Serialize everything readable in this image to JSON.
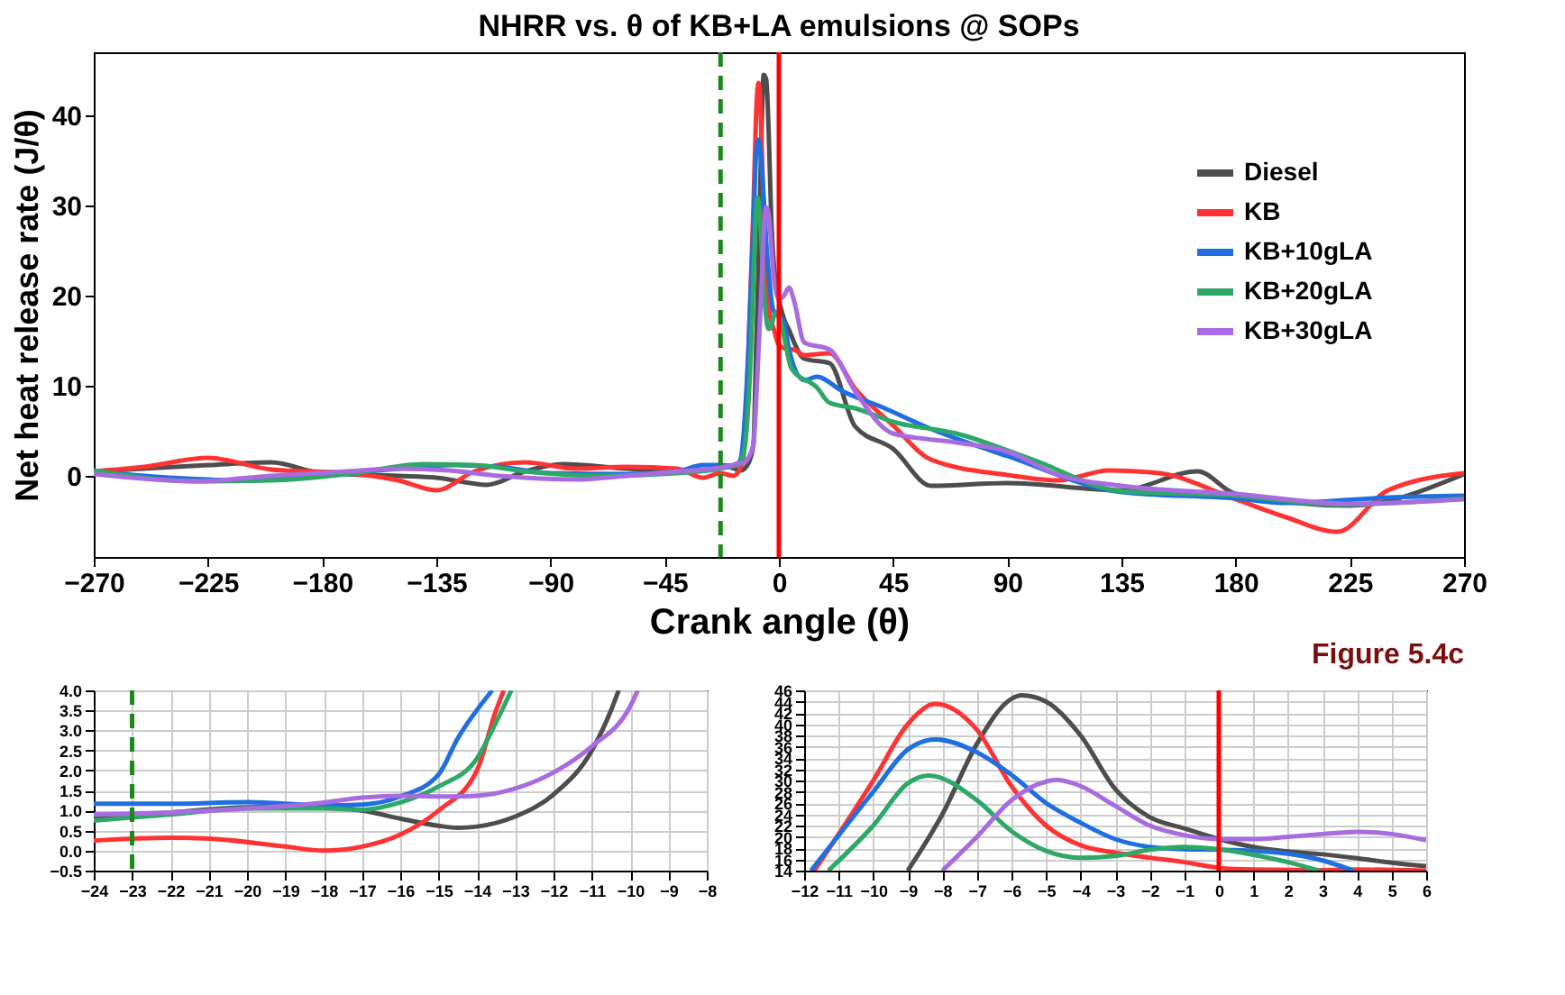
{
  "chart_data": [
    {
      "type": "line",
      "title": "NHRR vs. θ of KB+LA emulsions @ SOPs",
      "xlabel": "Crank angle (θ)",
      "ylabel": "Net heat release rate (J/θ)",
      "xlim": [
        -270,
        270
      ],
      "xticks": [
        -270,
        -225,
        -180,
        -135,
        -90,
        -45,
        0,
        45,
        90,
        135,
        180,
        225,
        270
      ],
      "ylim": [
        -9,
        47
      ],
      "yticks": [
        0,
        10,
        20,
        30,
        40
      ],
      "grid": false,
      "legend": "right",
      "line_style": "solid",
      "marker": "none",
      "annotations": [
        "Figure 5.4c"
      ],
      "ref_lines": [
        {
          "axis": "x",
          "value": -23,
          "color": "#1a8a1a",
          "line_style": "dashed"
        },
        {
          "axis": "x",
          "value": 0,
          "color": "#ff0000",
          "line_style": "solid"
        }
      ],
      "series": [
        {
          "name": "Diesel",
          "color": "#4d4d4d",
          "x": [
            -270,
            -225,
            -200,
            -180,
            -150,
            -135,
            -115,
            -100,
            -85,
            -60,
            -45,
            -30,
            -20,
            -15,
            -12,
            -10,
            -9,
            -8,
            -7,
            -6,
            -5,
            -4,
            -3,
            -2,
            0,
            2,
            4,
            6,
            10,
            20,
            30,
            45,
            60,
            90,
            135,
            165,
            180,
            225,
            270
          ],
          "values": [
            0.5,
            1.2,
            1.5,
            0.3,
            0,
            -0.2,
            -1.0,
            0.5,
            1.3,
            0.8,
            0.6,
            0.6,
            1.0,
            0.6,
            1.4,
            3.6,
            14,
            24,
            36.5,
            44.5,
            44,
            38,
            28.5,
            23.5,
            19.6,
            17.4,
            16.2,
            14.8,
            13,
            12.5,
            5.5,
            3,
            -1.1,
            -0.8,
            -1.6,
            0.5,
            -2,
            -3.3,
            0.2
          ]
        },
        {
          "name": "KB",
          "color": "#ff3333",
          "x": [
            -270,
            -250,
            -225,
            -200,
            -170,
            -150,
            -135,
            -120,
            -100,
            -80,
            -60,
            -40,
            -30,
            -23,
            -18,
            -15,
            -14,
            -12,
            -10,
            -9,
            -8,
            -7,
            -6,
            -5,
            -4,
            -2,
            0,
            3,
            6,
            10,
            20,
            30,
            45,
            60,
            90,
            110,
            130,
            150,
            180,
            200,
            220,
            240,
            270
          ],
          "values": [
            0.5,
            1,
            2,
            0.7,
            0.3,
            -0.5,
            -1.6,
            0.5,
            1.5,
            0.8,
            1,
            0.8,
            -0.2,
            0.3,
            0,
            1.0,
            2.0,
            14,
            30,
            40,
            43.6,
            39,
            29,
            22,
            18.5,
            16.3,
            14.5,
            14.1,
            14,
            13.4,
            13.6,
            9.7,
            5.6,
            1.8,
            0.1,
            -0.5,
            0.6,
            0.3,
            -2.6,
            -4.6,
            -6.2,
            -1.6,
            0.3
          ]
        },
        {
          "name": "KB+10gLA",
          "color": "#1f6fe0",
          "x": [
            -270,
            -240,
            -210,
            -180,
            -150,
            -130,
            -110,
            -90,
            -60,
            -40,
            -30,
            -23,
            -18,
            -16,
            -15,
            -14,
            -12,
            -10,
            -9,
            -8,
            -7,
            -6,
            -5,
            -4,
            -3,
            -2,
            0,
            2,
            4,
            10,
            15,
            25,
            40,
            60,
            90,
            135,
            180,
            200,
            240,
            270
          ],
          "values": [
            0.5,
            -0.2,
            -0.5,
            0,
            0.8,
            1.2,
            1.0,
            0.3,
            0.2,
            0.5,
            1.2,
            1.2,
            1.1,
            1.4,
            1.9,
            4.3,
            14,
            28,
            35.5,
            37.3,
            35,
            31,
            26,
            22.5,
            19.6,
            18.2,
            17.7,
            17,
            14,
            10.6,
            11,
            9.4,
            7.7,
            5.2,
            2.2,
            -1.8,
            -2.5,
            -3.0,
            -2.4,
            -2.2
          ]
        },
        {
          "name": "KB+20gLA",
          "color": "#2ea866",
          "x": [
            -270,
            -230,
            -200,
            -170,
            -140,
            -120,
            -100,
            -70,
            -40,
            -23,
            -18,
            -16,
            -15,
            -14,
            -13,
            -11,
            -10,
            -9,
            -8.4,
            -7,
            -6,
            -5,
            -4,
            -3,
            -2,
            -1,
            0,
            1,
            2,
            5,
            15,
            20,
            30,
            45,
            70,
            100,
            135,
            180,
            220,
            270
          ],
          "values": [
            0.6,
            -0.6,
            -0.5,
            0.2,
            1.3,
            1.2,
            0.5,
            0,
            0.3,
            0.8,
            1.1,
            1.2,
            1.6,
            2.3,
            4.2,
            14,
            22,
            29.5,
            30.9,
            26.5,
            21,
            17.5,
            16.3,
            16.6,
            17.7,
            18.2,
            17.8,
            16.8,
            15.5,
            11.9,
            9.8,
            8.1,
            7.5,
            6.0,
            4.7,
            1.8,
            -1.7,
            -2.2,
            -3.2,
            -2.5
          ]
        },
        {
          "name": "KB+30gLA",
          "color": "#a86ce0",
          "x": [
            -270,
            -230,
            -200,
            -170,
            -150,
            -130,
            -110,
            -80,
            -60,
            -40,
            -23,
            -18,
            -16,
            -14,
            -13,
            -12,
            -11,
            -10,
            -8,
            -7,
            -6,
            -5,
            -4,
            -3,
            -2,
            -1,
            0,
            2,
            4,
            6,
            10,
            20,
            30,
            45,
            70,
            90,
            110,
            135,
            180,
            225,
            270
          ],
          "values": [
            0.2,
            -0.6,
            0,
            0.5,
            0.8,
            0.6,
            0,
            -0.4,
            0,
            0.5,
            0.9,
            1.2,
            1.4,
            1.4,
            1.6,
            2,
            2.6,
            3.6,
            14,
            20,
            26.5,
            29.8,
            29,
            25.5,
            22,
            20.3,
            19.6,
            20,
            20.9,
            19.4,
            14.8,
            14,
            9.4,
            4.7,
            3.7,
            2.7,
            0.1,
            -1.1,
            -2,
            -3.1,
            -2.6
          ]
        }
      ]
    },
    {
      "type": "line",
      "xlim": [
        -24,
        -8
      ],
      "xticks": [
        -24,
        -23,
        -22,
        -21,
        -20,
        -19,
        -18,
        -17,
        -16,
        -15,
        -14,
        -13,
        -12,
        -11,
        -10,
        -9,
        -8
      ],
      "ylim": [
        -0.5,
        4
      ],
      "yticks": [
        -0.5,
        {
          "value": 0,
          "label": "0.0"
        },
        0.5,
        {
          "value": 1,
          "label": "1.0"
        },
        1.5,
        {
          "value": 2,
          "label": "2.0"
        },
        2.5,
        {
          "value": 3,
          "label": "3.0"
        },
        3.5,
        {
          "value": 4,
          "label": "4.0"
        }
      ],
      "grid": true,
      "legend": false,
      "line_style": "solid",
      "marker": "none",
      "ref_lines": [
        {
          "axis": "x",
          "value": -23,
          "color": "#1a8a1a",
          "line_style": "dashed"
        }
      ],
      "series": [
        {
          "color": "#4d4d4d",
          "x": [
            -24,
            -22,
            -20,
            -18,
            -17,
            -16,
            -15,
            -14.5,
            -14,
            -13,
            -12,
            -11,
            -10.5,
            -10.3
          ],
          "values": [
            0.8,
            0.95,
            1.08,
            1.1,
            1.0,
            0.8,
            0.62,
            0.57,
            0.6,
            0.85,
            1.4,
            2.5,
            3.5,
            4.0
          ]
        },
        {
          "color": "#ff3333",
          "x": [
            -24,
            -22,
            -21,
            -19,
            -18,
            -17,
            -16,
            -15,
            -14,
            -13.5,
            -13.3
          ],
          "values": [
            0.25,
            0.32,
            0.3,
            0.1,
            0.0,
            0.1,
            0.4,
            1.0,
            2.0,
            3.5,
            4.0
          ]
        },
        {
          "color": "#1f6fe0",
          "x": [
            -24,
            -22,
            -20,
            -18,
            -17,
            -16,
            -15,
            -14.5,
            -13.6
          ],
          "values": [
            1.17,
            1.17,
            1.21,
            1.13,
            1.15,
            1.35,
            1.9,
            2.8,
            4.0
          ]
        },
        {
          "color": "#2ea866",
          "x": [
            -24,
            -22,
            -20,
            -18,
            -17,
            -16,
            -15,
            -14,
            -13.5,
            -13.1
          ],
          "values": [
            0.75,
            0.9,
            1.05,
            1.05,
            1.02,
            1.2,
            1.6,
            2.3,
            3.2,
            4.0
          ]
        },
        {
          "color": "#a86ce0",
          "x": [
            -24,
            -22,
            -20,
            -18,
            -17,
            -16,
            -15,
            -14,
            -13,
            -12,
            -11,
            -10,
            -9.8
          ],
          "values": [
            0.9,
            0.95,
            1.05,
            1.2,
            1.32,
            1.37,
            1.35,
            1.37,
            1.55,
            1.95,
            2.6,
            3.6,
            4.0
          ]
        }
      ]
    },
    {
      "type": "line",
      "xlim": [
        -12,
        6
      ],
      "xticks": [
        -12,
        -11,
        -10,
        -9,
        -8,
        -7,
        -6,
        -5,
        -4,
        -3,
        -2,
        -1,
        0,
        1,
        2,
        3,
        4,
        5,
        6
      ],
      "ylim": [
        14,
        46
      ],
      "yticks": [
        14,
        16,
        18,
        20,
        22,
        24,
        26,
        28,
        30,
        32,
        34,
        36,
        38,
        40,
        42,
        44,
        46
      ],
      "grid": true,
      "legend": false,
      "line_style": "solid",
      "marker": "none",
      "ref_lines": [
        {
          "axis": "x",
          "value": 0,
          "color": "#ff0000",
          "line_style": "solid"
        }
      ],
      "series": [
        {
          "color": "#4d4d4d",
          "x": [
            -9,
            -8,
            -7,
            -6,
            -5.7,
            -5,
            -4,
            -3,
            -2,
            -1,
            0,
            1,
            2,
            3,
            4,
            5,
            6
          ],
          "values": [
            14,
            24,
            36.5,
            44.5,
            45.1,
            44,
            38,
            28.5,
            23.5,
            21.5,
            19.6,
            18.2,
            17.4,
            16.9,
            16.2,
            15.4,
            14.8
          ]
        },
        {
          "color": "#ff3333",
          "x": [
            -11.7,
            -10,
            -9,
            -8.2,
            -7,
            -6,
            -5,
            -4,
            -3,
            -2,
            -1,
            0,
            1,
            3,
            4,
            6
          ],
          "values": [
            14,
            30,
            40,
            43.6,
            39,
            29,
            22,
            18.5,
            17.2,
            16.3,
            15.5,
            14.5,
            14.2,
            14.1,
            14.2,
            14
          ]
        },
        {
          "color": "#1f6fe0",
          "x": [
            -11.8,
            -10,
            -9,
            -8.2,
            -7,
            -6,
            -5,
            -4,
            -3,
            -2,
            -1,
            0,
            1,
            2,
            3,
            3.9
          ],
          "values": [
            14,
            28,
            35.5,
            37.3,
            35,
            31,
            26,
            22.5,
            19.6,
            18.2,
            17.8,
            17.7,
            17.5,
            17,
            15.8,
            14
          ]
        },
        {
          "color": "#2ea866",
          "x": [
            -11.3,
            -10,
            -9,
            -8.4,
            -7,
            -6,
            -5,
            -4,
            -3,
            -2,
            -1,
            0,
            1,
            2,
            2.9
          ],
          "values": [
            14,
            22,
            29.5,
            30.9,
            26.5,
            21,
            17.5,
            16.3,
            16.6,
            17.7,
            18.2,
            17.8,
            16.8,
            15.5,
            14
          ]
        },
        {
          "color": "#a86ce0",
          "x": [
            -8,
            -7,
            -6,
            -5,
            -4.7,
            -4,
            -3,
            -2,
            -1,
            0,
            1,
            2,
            3,
            4,
            5,
            6
          ],
          "values": [
            14,
            20,
            26.5,
            29.8,
            30.1,
            29,
            25.5,
            22,
            20.3,
            19.6,
            19.6,
            20,
            20.5,
            20.9,
            20.5,
            19.4
          ]
        }
      ]
    }
  ]
}
